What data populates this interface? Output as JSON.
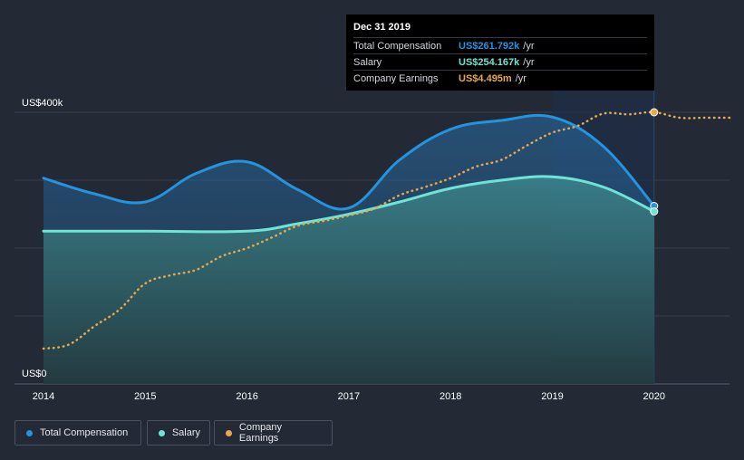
{
  "chart_data": {
    "type": "area",
    "x_ticks": [
      "2014",
      "2015",
      "2016",
      "2017",
      "2018",
      "2019",
      "2020"
    ],
    "y_ticks": [
      "US$0",
      "US$400k"
    ],
    "ylim": [
      0,
      400000
    ],
    "grid": true,
    "legend_position": "bottom-left",
    "series": [
      {
        "name": "Total Compensation",
        "color": "#2394df",
        "x": [
          2014.0,
          2014.5,
          2015.0,
          2015.5,
          2016.0,
          2016.5,
          2017.0,
          2017.5,
          2018.0,
          2018.5,
          2019.0,
          2019.5,
          2020.0
        ],
        "values": [
          303000,
          280000,
          268000,
          310000,
          327000,
          286000,
          259000,
          330000,
          375000,
          388000,
          393000,
          350000,
          262000
        ]
      },
      {
        "name": "Salary",
        "color": "#6fe3d5",
        "x": [
          2014.0,
          2015.0,
          2016.0,
          2016.5,
          2017.0,
          2017.5,
          2018.0,
          2018.5,
          2019.0,
          2019.5,
          2020.0
        ],
        "values": [
          225000,
          225000,
          225000,
          236000,
          250000,
          268000,
          288000,
          300000,
          305000,
          290000,
          254000
        ]
      },
      {
        "name": "Company Earnings",
        "color": "#e8a84b",
        "x": [
          2014.0,
          2014.25,
          2014.5,
          2014.75,
          2015.0,
          2015.25,
          2015.5,
          2015.75,
          2016.0,
          2016.25,
          2016.5,
          2016.75,
          2017.0,
          2017.25,
          2017.5,
          2017.75,
          2018.0,
          2018.25,
          2018.5,
          2018.75,
          2019.0,
          2019.25,
          2019.5,
          2019.75,
          2020.0,
          2020.25,
          2020.5,
          2020.75
        ],
        "values": [
          52000,
          58000,
          85000,
          110000,
          148000,
          160000,
          168000,
          188000,
          200000,
          216000,
          233000,
          240000,
          248000,
          258000,
          278000,
          290000,
          303000,
          320000,
          330000,
          351000,
          370000,
          380000,
          398000,
          397000,
          400000,
          392000,
          392000,
          392000
        ]
      }
    ],
    "tooltip": {
      "date": "Dec 31 2019",
      "rows": [
        {
          "label": "Total Compensation",
          "value": "US$261.792k",
          "unit": "/yr",
          "color": "#2394df"
        },
        {
          "label": "Salary",
          "value": "US$254.167k",
          "unit": "/yr",
          "color": "#6fe3d5"
        },
        {
          "label": "Company Earnings",
          "value": "US$4.495m",
          "unit": "/yr",
          "color": "#e8a84b"
        }
      ]
    },
    "highlight_range": [
      2019.0,
      2020.0
    ]
  },
  "legend": [
    {
      "label": "Total Compensation",
      "color": "#2394df"
    },
    {
      "label": "Salary",
      "color": "#6fe3d5"
    },
    {
      "label": "Company Earnings",
      "color": "#e8a84b"
    }
  ]
}
